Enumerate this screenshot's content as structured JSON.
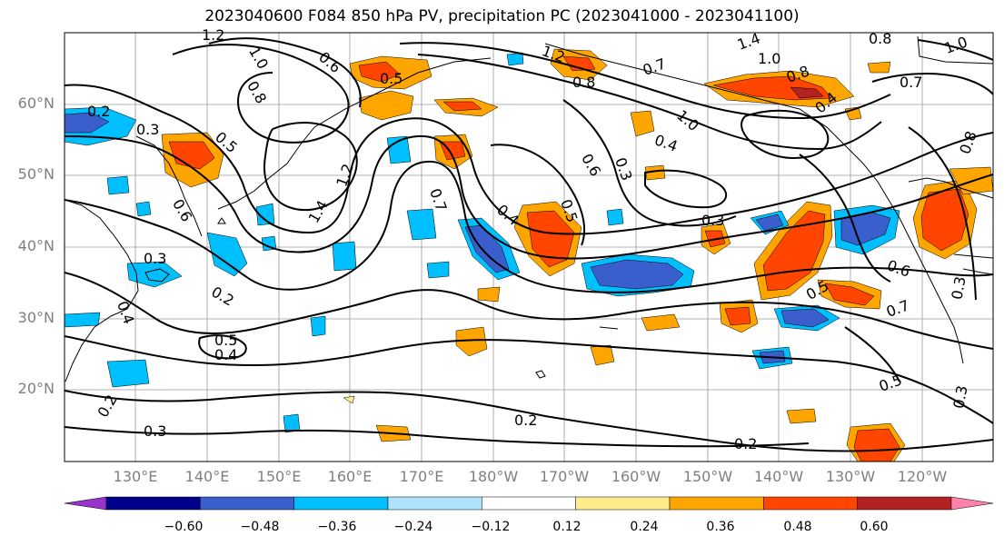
{
  "title": "2023040600 F084 850 hPa PV, precipitation PC (2023041000 - 2023041100)",
  "lat_labels": [
    "60°N",
    "50°N",
    "40°N",
    "30°N",
    "20°N"
  ],
  "lon_labels": [
    "130°E",
    "140°E",
    "150°E",
    "160°E",
    "170°E",
    "180°W",
    "170°W",
    "160°W",
    "150°W",
    "140°W",
    "130°W",
    "120°W"
  ],
  "contour_labels": [
    "1.2",
    "1.0",
    "0.8",
    "0.6",
    "0.5",
    "1.2",
    "0.8",
    "0.7",
    "1.4",
    "1.0",
    "0.8",
    "0.7",
    "1.0",
    "0.2",
    "0.3",
    "0.5",
    "0.8",
    "1.0",
    "0.4",
    "0.8",
    "0.6",
    "0.3",
    "0.4",
    "0.7",
    "0.4",
    "0.5",
    "0.6",
    "1.4",
    "1.2",
    "0.3",
    "0.3",
    "0.2",
    "0.4",
    "0.5",
    "0.4",
    "0.3",
    "0.6",
    "0.7",
    "0.5",
    "0.2",
    "0.2",
    "0.3",
    "0.2",
    "0.5",
    "0.3"
  ],
  "colorbar": {
    "ticks": [
      "−0.60",
      "−0.48",
      "−0.36",
      "−0.24",
      "−0.12",
      "0.12",
      "0.24",
      "0.36",
      "0.48",
      "0.60"
    ],
    "colors": [
      "#9932CC",
      "#00008B",
      "#3A5FCD",
      "#00BFFF",
      "#B0E2FF",
      "#FFFFFF",
      "#FFEC8B",
      "#FFA500",
      "#FF4500",
      "#B22222",
      "#FF82AB"
    ]
  }
}
